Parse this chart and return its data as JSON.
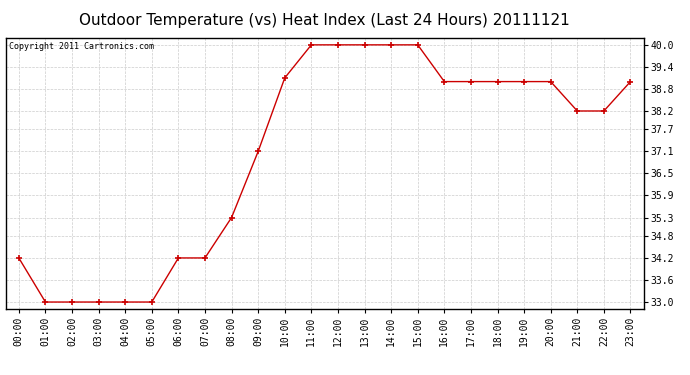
{
  "title": "Outdoor Temperature (vs) Heat Index (Last 24 Hours) 20111121",
  "copyright": "Copyright 2011 Cartronics.com",
  "x_labels": [
    "00:00",
    "01:00",
    "02:00",
    "03:00",
    "04:00",
    "05:00",
    "06:00",
    "07:00",
    "08:00",
    "09:00",
    "10:00",
    "11:00",
    "12:00",
    "13:00",
    "14:00",
    "15:00",
    "16:00",
    "17:00",
    "18:00",
    "19:00",
    "20:00",
    "21:00",
    "22:00",
    "23:00"
  ],
  "y_values": [
    34.2,
    33.0,
    33.0,
    33.0,
    33.0,
    33.0,
    34.2,
    34.2,
    35.3,
    37.1,
    39.1,
    40.0,
    40.0,
    40.0,
    40.0,
    40.0,
    39.0,
    39.0,
    39.0,
    39.0,
    39.0,
    38.2,
    38.2,
    39.0
  ],
  "y_ticks": [
    33.0,
    33.6,
    34.2,
    34.8,
    35.3,
    35.9,
    36.5,
    37.1,
    37.7,
    38.2,
    38.8,
    39.4,
    40.0
  ],
  "ylim": [
    32.8,
    40.2
  ],
  "line_color": "#cc0000",
  "marker": "+",
  "marker_size": 4,
  "background_color": "#ffffff",
  "grid_color": "#cccccc",
  "title_fontsize": 11,
  "copyright_fontsize": 6,
  "tick_fontsize": 7
}
